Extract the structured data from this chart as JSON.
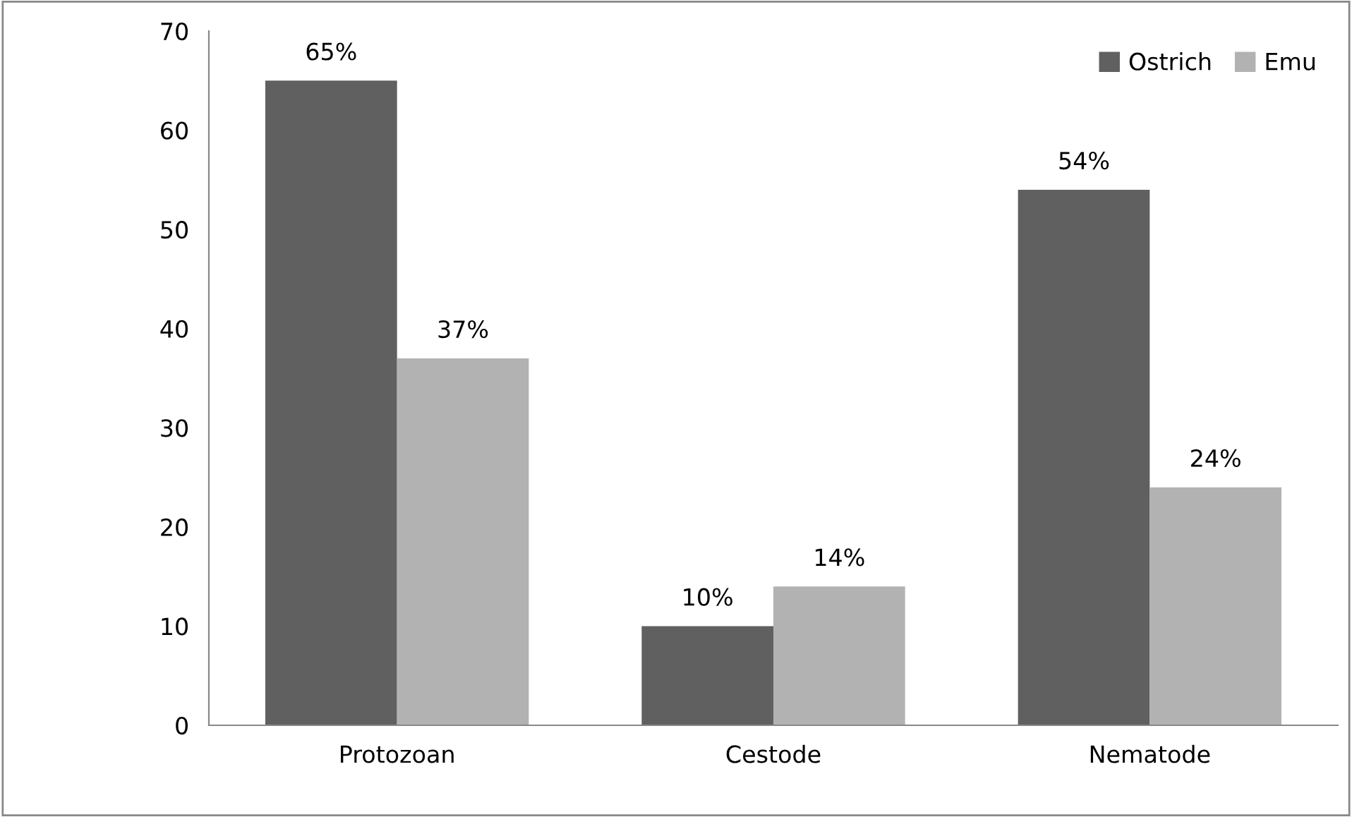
{
  "chart_data": {
    "type": "bar",
    "categories": [
      "Protozoan",
      "Cestode",
      "Nematode"
    ],
    "series": [
      {
        "name": "Ostrich",
        "color": "#606060",
        "values": [
          65,
          10,
          54
        ],
        "value_labels": [
          "65%",
          "10%",
          "54%"
        ]
      },
      {
        "name": "Emu",
        "color": "#b2b2b2",
        "values": [
          37,
          14,
          24
        ],
        "value_labels": [
          "37%",
          "14%",
          "24%"
        ]
      }
    ],
    "ylim": [
      0,
      70
    ],
    "yticks": [
      0,
      10,
      20,
      30,
      40,
      50,
      60,
      70
    ],
    "grid": false,
    "legend": "top right"
  }
}
